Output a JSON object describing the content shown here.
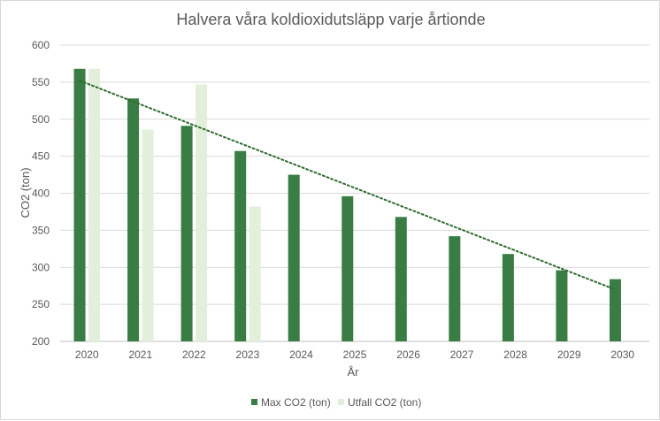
{
  "chart_data": {
    "type": "bar",
    "title": "Halvera våra koldioxidutsläpp varje årtionde",
    "xlabel": "År",
    "ylabel": "CO2 (ton)",
    "ylim": [
      200,
      600
    ],
    "yticks": [
      200,
      250,
      300,
      350,
      400,
      450,
      500,
      550,
      600
    ],
    "grid": true,
    "legend_position": "bottom",
    "categories": [
      "2020",
      "2021",
      "2022",
      "2023",
      "2024",
      "2025",
      "2026",
      "2027",
      "2028",
      "2029",
      "2030"
    ],
    "series": [
      {
        "name": "Max CO2 (ton)",
        "color": "#3a7d44",
        "values": [
          568,
          528,
          491,
          457,
          425,
          396,
          368,
          342,
          318,
          296,
          284
        ]
      },
      {
        "name": "Utfall CO2 (ton)",
        "color": "#e2efda",
        "values": [
          568,
          486,
          547,
          382,
          null,
          null,
          null,
          null,
          null,
          null,
          null
        ]
      }
    ],
    "trendline": {
      "series": "Max CO2 (ton)",
      "type": "linear",
      "style": "dotted",
      "color": "#2e6b2e",
      "start": [
        2020,
        552
      ],
      "end": [
        2030,
        270
      ]
    }
  }
}
